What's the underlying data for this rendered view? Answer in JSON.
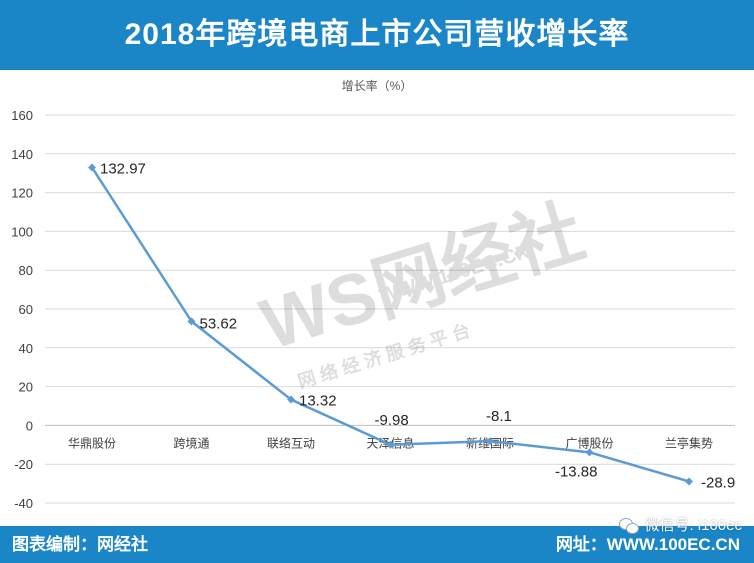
{
  "header": {
    "title": "2018年跨境电商上市公司营收增长率"
  },
  "footer": {
    "left_label": "图表编制：网经社",
    "right_label": "网址：WWW.100EC.CN",
    "wechat_label": "微信号: i100ec"
  },
  "watermark": {
    "logo_text": "WS网经社",
    "url_text": "WWW.100EC.CN",
    "tagline": "网 络 经 济 服 务 平 台"
  },
  "colors": {
    "banner": "#1a86c8",
    "line": "#5b9bd5",
    "grid": "#d9d9d9"
  },
  "chart_data": {
    "type": "line",
    "title": "",
    "ylabel": "增长率（%）",
    "xlabel": "",
    "ylim": [
      -40,
      160
    ],
    "yticks": [
      -40,
      -20,
      0,
      20,
      40,
      60,
      80,
      100,
      120,
      140,
      160
    ],
    "grid": "horizontal",
    "categories": [
      "华鼎股份",
      "跨境通",
      "联络互动",
      "天泽信息",
      "新维国际",
      "广博股份",
      "兰亭集势"
    ],
    "series": [
      {
        "values": [
          132.97,
          53.62,
          13.32,
          -9.98,
          -8.1,
          -13.88,
          -28.9
        ],
        "labels": [
          "132.97",
          "53.62",
          "13.32",
          "-9.98",
          "-8.1",
          "-13.88",
          "-28.9"
        ]
      }
    ]
  }
}
